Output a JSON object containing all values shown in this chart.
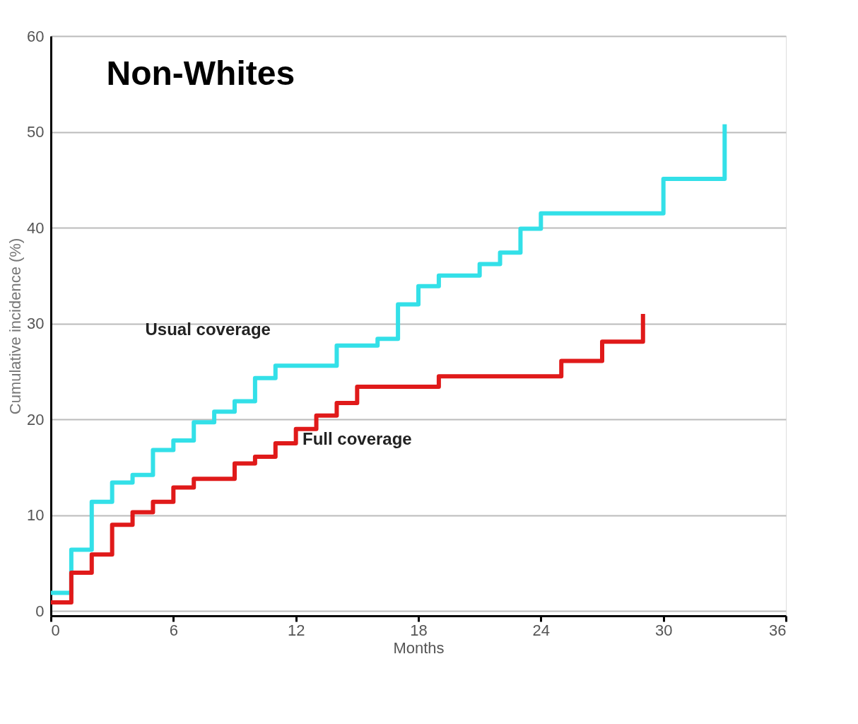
{
  "chart_data": {
    "type": "step",
    "title": "Non-Whites",
    "xlabel": "Months",
    "ylabel": "Cumulative incidence (%)",
    "xlim": [
      0,
      36
    ],
    "xticks": [
      0,
      6,
      12,
      18,
      24,
      30,
      36
    ],
    "ylim": [
      -0.5,
      60
    ],
    "yticks": [
      0,
      10,
      20,
      30,
      40,
      50,
      60
    ],
    "grid": "y",
    "legend": false,
    "marker": "none",
    "line_style": "solid",
    "series": [
      {
        "name": "Usual coverage",
        "color": "#33e0e8",
        "x": [
          0,
          1,
          2,
          3,
          4,
          5,
          6,
          7,
          8,
          9,
          10,
          11,
          14,
          16,
          17,
          18,
          19,
          21,
          22,
          23,
          24,
          30,
          33
        ],
        "values": [
          1.9,
          6.4,
          11.4,
          13.4,
          14.2,
          16.8,
          17.8,
          19.7,
          20.8,
          21.9,
          24.3,
          25.6,
          27.7,
          28.4,
          32,
          33.9,
          35,
          36.2,
          37.4,
          39.9,
          41.5,
          45.1,
          50.8
        ]
      },
      {
        "name": "Full coverage",
        "color": "#e01a1a",
        "x": [
          0,
          1,
          2,
          3,
          4,
          5,
          6,
          7,
          9,
          10,
          11,
          12,
          13,
          14,
          15,
          19,
          25,
          27,
          29
        ],
        "values": [
          0.9,
          4,
          5.9,
          9,
          10.3,
          11.4,
          12.9,
          13.8,
          15.4,
          16.1,
          17.5,
          19,
          20.4,
          21.7,
          23.4,
          24.5,
          26.1,
          28.1,
          31
        ]
      }
    ]
  }
}
